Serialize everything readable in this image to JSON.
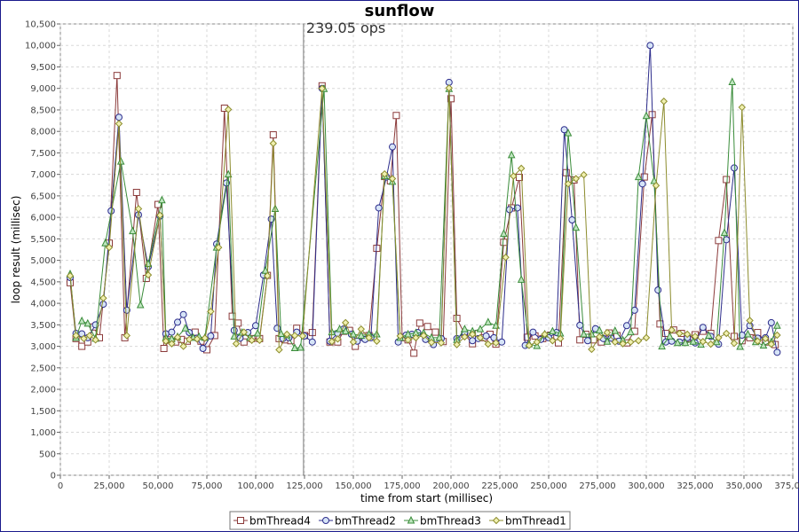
{
  "chart_data": {
    "type": "line",
    "title": "sunflow",
    "xlabel": "time from start (millisec)",
    "ylabel": "loop result (millisec)",
    "xlim": [
      0,
      375000
    ],
    "ylim": [
      0,
      10500
    ],
    "x_ticks": [
      0,
      25000,
      50000,
      75000,
      100000,
      125000,
      150000,
      175000,
      200000,
      225000,
      250000,
      275000,
      300000,
      325000,
      350000,
      375000
    ],
    "x_tick_labels": [
      "0",
      "25,000",
      "50,000",
      "75,000",
      "100,000",
      "125,000",
      "150,000",
      "175,000",
      "200,000",
      "225,000",
      "250,000",
      "275,000",
      "300,000",
      "325,000",
      "350,000",
      "375,000"
    ],
    "y_ticks": [
      0,
      500,
      1000,
      1500,
      2000,
      2500,
      3000,
      3500,
      4000,
      4500,
      5000,
      5500,
      6000,
      6500,
      7000,
      7500,
      8000,
      8500,
      9000,
      9500,
      10000,
      10500
    ],
    "y_tick_labels": [
      "0",
      "500",
      "1,000",
      "1,500",
      "2,000",
      "2,500",
      "3,000",
      "3,500",
      "4,000",
      "4,500",
      "5,000",
      "5,500",
      "6,000",
      "6,500",
      "7,000",
      "7,500",
      "8,000",
      "8,500",
      "9,000",
      "9,500",
      "10,000",
      "10,500"
    ],
    "grid": true,
    "legend_position": "bottom",
    "marker_line": {
      "x": 124500,
      "label": "239.05 ops"
    },
    "series": [
      {
        "name": "bmThread4",
        "marker": "square",
        "line_color": "#8b3a3a",
        "x": [
          5000,
          8000,
          11000,
          14000,
          17000,
          20000,
          25000,
          29000,
          33000,
          39000,
          44000,
          50000,
          53000,
          56000,
          59000,
          62000,
          65000,
          69000,
          72000,
          75000,
          79000,
          84000,
          88000,
          91000,
          94000,
          98000,
          102000,
          106000,
          109000,
          112000,
          115000,
          118000,
          121000,
          125000,
          129000,
          134000,
          138000,
          142000,
          145000,
          148000,
          151000,
          155000,
          158000,
          162000,
          166000,
          169000,
          172000,
          175000,
          178000,
          181000,
          184000,
          188000,
          192000,
          196000,
          200000,
          203000,
          207000,
          211000,
          214000,
          217000,
          220000,
          223000,
          227000,
          231000,
          235000,
          239000,
          243000,
          247000,
          251000,
          255000,
          259000,
          263000,
          266000,
          269000,
          273000,
          277000,
          281000,
          285000,
          290000,
          294000,
          299000,
          303000,
          307000,
          310000,
          314000,
          318000,
          321000,
          325000,
          329000,
          333000,
          337000,
          341000,
          345000,
          349000,
          353000,
          357000,
          361000,
          366000
        ],
        "y": [
          4480,
          3180,
          3000,
          3100,
          3450,
          3200,
          5400,
          9300,
          3200,
          6580,
          4580,
          6300,
          2950,
          3150,
          3100,
          3160,
          3120,
          3330,
          3120,
          2920,
          3250,
          8540,
          3700,
          3540,
          3100,
          3180,
          3180,
          4650,
          7920,
          3180,
          3150,
          3130,
          3420,
          3250,
          3320,
          9060,
          3100,
          3100,
          3350,
          3370,
          3000,
          3230,
          3250,
          5280,
          6950,
          6850,
          8370,
          3200,
          3150,
          2840,
          3540,
          3460,
          3330,
          3110,
          8760,
          3650,
          3280,
          3060,
          3300,
          3200,
          3280,
          3050,
          5420,
          6220,
          6930,
          3210,
          3240,
          3180,
          3260,
          3080,
          7040,
          6870,
          3150,
          3280,
          3150,
          3100,
          3310,
          3250,
          3080,
          3350,
          6940,
          8390,
          3520,
          3300,
          3380,
          3300,
          3180,
          3270,
          3350,
          3300,
          5460,
          6880,
          3230,
          3130,
          3200,
          3320,
          3100,
          3040
        ]
      },
      {
        "name": "bmThread2",
        "marker": "circle",
        "line_color": "#2d2d8c",
        "x": [
          5000,
          8000,
          11000,
          14000,
          18000,
          22000,
          26000,
          30000,
          34000,
          40000,
          45000,
          51000,
          54000,
          57000,
          60000,
          63000,
          66000,
          70000,
          73000,
          77000,
          80000,
          85000,
          89000,
          92000,
          96000,
          100000,
          104000,
          108000,
          111000,
          114000,
          117000,
          121000,
          125000,
          129000,
          134000,
          138000,
          142000,
          145000,
          149000,
          152000,
          156000,
          159000,
          163000,
          167000,
          170000,
          173000,
          177000,
          180000,
          183000,
          187000,
          191000,
          195000,
          199000,
          203000,
          207000,
          211000,
          214000,
          218000,
          222000,
          226000,
          230000,
          234000,
          238000,
          242000,
          246000,
          250000,
          254000,
          258000,
          262000,
          266000,
          270000,
          274000,
          278000,
          282000,
          286000,
          290000,
          294000,
          298000,
          302000,
          306000,
          310000,
          313000,
          317000,
          321000,
          325000,
          329000,
          333000,
          337000,
          341000,
          345000,
          349000,
          353000,
          357000,
          361000,
          364000,
          367000
        ],
        "y": [
          4600,
          3300,
          3290,
          3200,
          3500,
          3980,
          6150,
          8330,
          3840,
          6060,
          4850,
          6030,
          3290,
          3330,
          3560,
          3740,
          3320,
          3190,
          2950,
          3240,
          5380,
          6800,
          3370,
          3190,
          3320,
          3480,
          4660,
          5960,
          3420,
          3180,
          3200,
          3330,
          3240,
          3100,
          9000,
          3120,
          3300,
          3400,
          3280,
          3120,
          3160,
          3200,
          6220,
          6940,
          7640,
          3100,
          3260,
          3280,
          3320,
          3160,
          3040,
          3180,
          9140,
          3180,
          3320,
          3130,
          3180,
          3240,
          3200,
          3100,
          6180,
          6220,
          3020,
          3330,
          3160,
          3200,
          3320,
          8040,
          5940,
          3490,
          3130,
          3410,
          3180,
          3190,
          3120,
          3480,
          3840,
          6780,
          10000,
          4310,
          3100,
          3120,
          3100,
          3200,
          3080,
          3440,
          3230,
          3050,
          5480,
          7150,
          3260,
          3480,
          3190,
          3200,
          3550,
          2860
        ]
      },
      {
        "name": "bmThread3",
        "marker": "triangle",
        "line_color": "#3a8c3a",
        "x": [
          5000,
          8000,
          11000,
          14000,
          18000,
          23000,
          31000,
          37000,
          41000,
          45000,
          52000,
          54000,
          57000,
          60000,
          64000,
          68000,
          71000,
          74000,
          80000,
          86000,
          89000,
          93000,
          97000,
          101000,
          105000,
          110000,
          113000,
          116000,
          120000,
          123000,
          135000,
          139000,
          143000,
          146000,
          150000,
          154000,
          158000,
          162000,
          166000,
          170000,
          174000,
          178000,
          182000,
          186000,
          190000,
          194000,
          199000,
          203000,
          207000,
          211000,
          215000,
          219000,
          223000,
          227000,
          231000,
          236000,
          240000,
          244000,
          248000,
          252000,
          256000,
          260000,
          264000,
          268000,
          272000,
          276000,
          280000,
          284000,
          288000,
          292000,
          296000,
          300000,
          304000,
          308000,
          312000,
          316000,
          320000,
          324000,
          328000,
          332000,
          336000,
          340000,
          344000,
          348000,
          352000,
          356000,
          360000,
          364000,
          367000
        ],
        "y": [
          4680,
          3200,
          3590,
          3530,
          3180,
          5400,
          7300,
          5680,
          3960,
          4920,
          6400,
          3200,
          3170,
          3220,
          3420,
          3200,
          3220,
          3200,
          5300,
          7000,
          3230,
          3320,
          3200,
          3300,
          4760,
          6200,
          3290,
          3260,
          2960,
          2970,
          8990,
          3330,
          3400,
          3350,
          3280,
          3250,
          3280,
          3280,
          6960,
          6830,
          3200,
          3280,
          3310,
          3310,
          3200,
          3200,
          8990,
          3150,
          3400,
          3350,
          3400,
          3560,
          3480,
          5620,
          7450,
          4550,
          3050,
          3010,
          3280,
          3350,
          3300,
          7960,
          5760,
          3280,
          3280,
          3370,
          3110,
          3360,
          3140,
          3330,
          6940,
          8360,
          6850,
          3000,
          3230,
          3080,
          3080,
          3110,
          3040,
          3250,
          3100,
          5640,
          9150,
          2990,
          3280,
          3100,
          3020,
          3100,
          3480
        ]
      },
      {
        "name": "bmThread1",
        "marker": "diamond",
        "line_color": "#8c8c2d",
        "x": [
          5000,
          8000,
          12000,
          15000,
          18000,
          22000,
          25000,
          30000,
          34000,
          40000,
          45000,
          51000,
          54000,
          57000,
          60000,
          63000,
          66000,
          70000,
          74000,
          77000,
          81000,
          86000,
          90000,
          94000,
          98000,
          102000,
          106000,
          109000,
          112000,
          116000,
          120000,
          124000,
          134000,
          139000,
          142000,
          146000,
          150000,
          154000,
          158000,
          162000,
          166000,
          170000,
          174000,
          178000,
          182000,
          186000,
          190000,
          195000,
          199000,
          203000,
          207000,
          211000,
          215000,
          219000,
          223000,
          228000,
          232000,
          236000,
          240000,
          244000,
          248000,
          252000,
          256000,
          260000,
          264000,
          268000,
          272000,
          276000,
          280000,
          284000,
          288000,
          292000,
          296000,
          300000,
          305000,
          309000,
          313000,
          317000,
          321000,
          325000,
          329000,
          333000,
          337000,
          341000,
          345000,
          349000,
          353000,
          357000,
          361000,
          364000,
          367000
        ],
        "y": [
          4640,
          3250,
          3180,
          3250,
          3150,
          4120,
          5300,
          8180,
          3250,
          6200,
          4660,
          6050,
          3120,
          3060,
          3210,
          3000,
          3160,
          3170,
          3190,
          3810,
          5300,
          8510,
          3060,
          3330,
          3140,
          3140,
          4640,
          7720,
          2920,
          3280,
          3250,
          3240,
          9000,
          3110,
          3170,
          3550,
          3100,
          3400,
          3200,
          3120,
          7010,
          6900,
          3240,
          3150,
          3200,
          3250,
          3090,
          3080,
          9010,
          3040,
          3220,
          3280,
          3200,
          3050,
          3080,
          5070,
          6960,
          7140,
          3020,
          3100,
          3280,
          3130,
          3180,
          6780,
          6900,
          6990,
          2930,
          3220,
          3320,
          3100,
          3060,
          3100,
          3130,
          3200,
          6740,
          8700,
          3380,
          3300,
          3280,
          3230,
          3110,
          3050,
          3200,
          3300,
          3070,
          8560,
          3600,
          3120,
          3180,
          3050,
          3260
        ]
      }
    ]
  }
}
